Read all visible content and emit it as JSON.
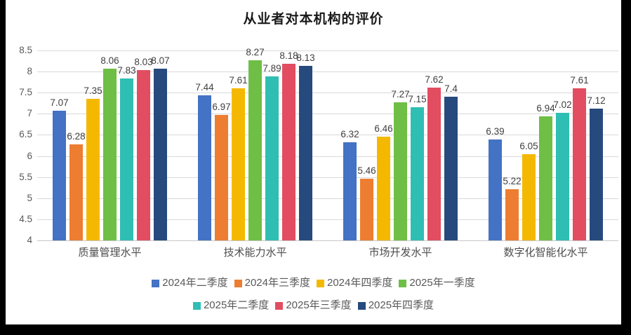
{
  "frame": {
    "border_color": "#000000",
    "background": "#ffffff"
  },
  "chart_data": {
    "type": "bar",
    "title": "从业者对本机构的评价",
    "categories": [
      "质量管理水平",
      "技术能力水平",
      "市场开发水平",
      "数字化智能化水平"
    ],
    "series": [
      {
        "name": "2024年二季度",
        "color": "#4472C4",
        "values": [
          7.07,
          7.44,
          6.32,
          6.39
        ]
      },
      {
        "name": "2024年三季度",
        "color": "#ED7D31",
        "values": [
          6.28,
          6.97,
          5.46,
          5.22
        ]
      },
      {
        "name": "2024年四季度",
        "color": "#F5B800",
        "values": [
          7.35,
          7.61,
          6.46,
          6.05
        ]
      },
      {
        "name": "2025年一季度",
        "color": "#6FBE45",
        "values": [
          8.06,
          8.27,
          7.27,
          6.94
        ]
      },
      {
        "name": "2025年二季度",
        "color": "#2FBEB3",
        "values": [
          7.83,
          7.89,
          7.15,
          7.02
        ]
      },
      {
        "name": "2025年三季度",
        "color": "#E24D61",
        "values": [
          8.03,
          8.18,
          7.62,
          7.61
        ]
      },
      {
        "name": "2025年四季度",
        "color": "#264A7D",
        "values": [
          8.07,
          8.13,
          7.4,
          7.12
        ]
      }
    ],
    "ylim": [
      4,
      8.5
    ],
    "ytick_step": 0.5,
    "yticks": [
      "8.5",
      "8",
      "7.5",
      "7",
      "6.5",
      "6",
      "5.5",
      "5",
      "4.5",
      "4"
    ],
    "grid": true,
    "data_labels": true,
    "legend_position": "bottom",
    "legend_rows": [
      [
        0,
        1,
        2,
        3
      ],
      [
        4,
        5,
        6
      ]
    ]
  }
}
